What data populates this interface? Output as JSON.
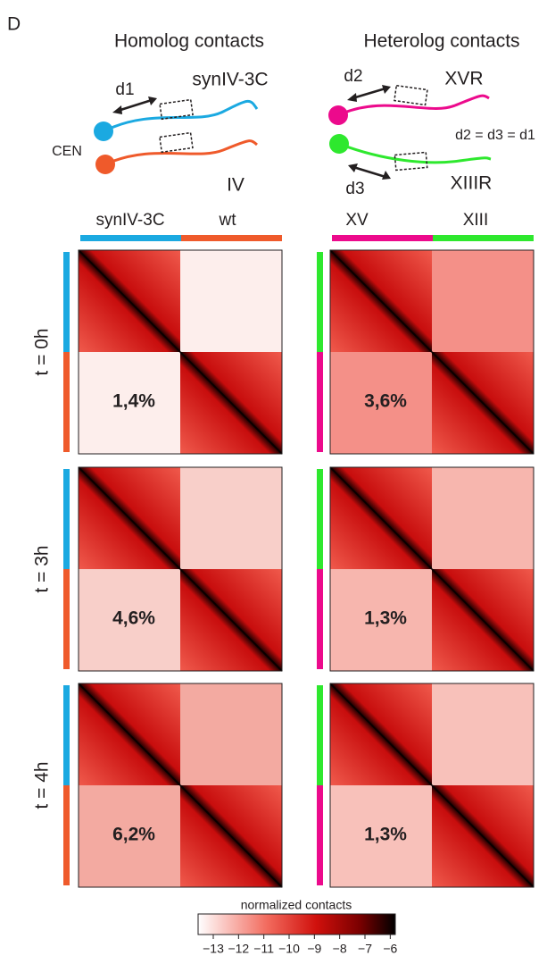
{
  "panel_label": "D",
  "columns": [
    {
      "title": "Homolog contacts",
      "chromosomes": [
        "synIV-3C",
        "wt"
      ]
    },
    {
      "title": "Heterolog contacts",
      "chromosomes": [
        "XV",
        "XIII"
      ]
    }
  ],
  "schematic": {
    "homolog": {
      "distance": "d1",
      "top": "synIV-3C",
      "bottom": "IV",
      "centromere": "CEN"
    },
    "heterolog": {
      "top_distance": "d2",
      "top": "XVR",
      "bottom_distance": "d3",
      "bottom": "XIIIR",
      "equation": "d2 = d3 = d1"
    }
  },
  "rows": [
    {
      "label": "t = 0h",
      "percents": [
        "1,4%",
        "3,6%"
      ]
    },
    {
      "label": "t = 3h",
      "percents": [
        "4,6%",
        "1,3%"
      ]
    },
    {
      "label": "t = 4h",
      "percents": [
        "6,2%",
        "1,3%"
      ]
    }
  ],
  "colorbar": {
    "title": "normalized contacts",
    "lim": [
      -13.6,
      -5.8
    ],
    "ticks": [
      {
        "value": -13,
        "label": "−13"
      },
      {
        "value": -12,
        "label": "−12"
      },
      {
        "value": -11,
        "label": "−11"
      },
      {
        "value": -10,
        "label": "−10"
      },
      {
        "value": -9,
        "label": "−9"
      },
      {
        "value": -8,
        "label": "−8"
      },
      {
        "value": -7,
        "label": "−7"
      },
      {
        "value": -6,
        "label": "−6"
      }
    ]
  }
}
